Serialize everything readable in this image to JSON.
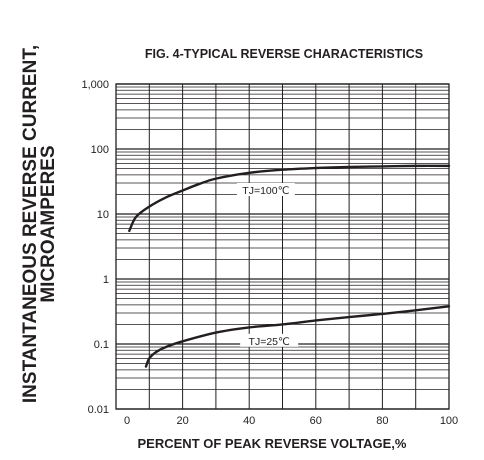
{
  "chart_data": {
    "type": "line",
    "title": "FIG. 4-TYPICAL REVERSE CHARACTERISTICS",
    "xlabel": "PERCENT OF PEAK REVERSE VOLTAGE,%",
    "ylabel_lines": [
      "INSTANTANEOUS REVERSE CURRENT,",
      "MICROAMPERES"
    ],
    "x_scale": "linear",
    "y_scale": "log",
    "xlim": [
      0,
      100
    ],
    "ylim": [
      0.01,
      1000
    ],
    "x_ticks": [
      0,
      20,
      40,
      60,
      80,
      100
    ],
    "x_tick_labels": [
      "0",
      "20",
      "40",
      "60",
      "80",
      "100"
    ],
    "y_ticks": [
      0.01,
      0.1,
      1,
      10,
      100,
      1000
    ],
    "y_tick_labels": [
      "0.01",
      "0.1",
      "1",
      "10",
      "100",
      "1,000"
    ],
    "grid": true,
    "series": [
      {
        "name": "TJ=100℃",
        "x": [
          4,
          6,
          10,
          15,
          20,
          25,
          30,
          40,
          50,
          60,
          70,
          80,
          90,
          100
        ],
        "y": [
          5.5,
          9,
          13,
          18,
          23,
          29,
          35,
          43,
          48,
          51,
          53,
          54,
          55,
          55
        ]
      },
      {
        "name": "TJ=25℃",
        "x": [
          9,
          10,
          12,
          15,
          20,
          30,
          40,
          50,
          60,
          70,
          80,
          90,
          100
        ],
        "y": [
          0.045,
          0.06,
          0.075,
          0.09,
          0.11,
          0.15,
          0.18,
          0.2,
          0.23,
          0.26,
          0.29,
          0.33,
          0.38
        ]
      }
    ],
    "annotations": [
      {
        "text": "TJ=100℃",
        "series": 0,
        "x": 45,
        "y": 23
      },
      {
        "text": "TJ=25℃",
        "series": 1,
        "x": 46,
        "y": 0.11
      }
    ]
  }
}
